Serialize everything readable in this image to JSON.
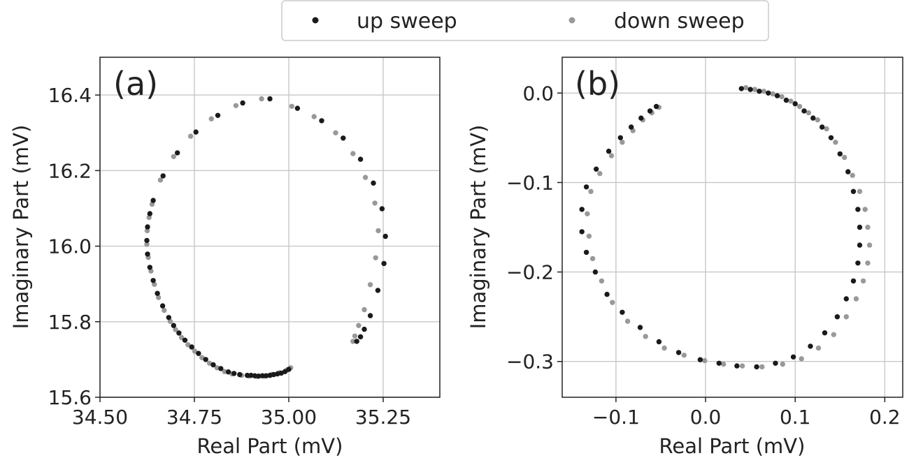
{
  "legend": {
    "items": [
      {
        "label": "up sweep",
        "color": "#1a1a1a"
      },
      {
        "label": "down sweep",
        "color": "#999999"
      }
    ],
    "placement": "top-center"
  },
  "chart_data": [
    {
      "type": "scatter",
      "panel_label": "(a)",
      "xlabel": "Real Part (mV)",
      "ylabel": "Imaginary Part (mV)",
      "xlim": [
        34.5,
        35.4
      ],
      "ylim": [
        15.6,
        16.5
      ],
      "xticks": [
        34.5,
        34.75,
        35.0,
        35.25
      ],
      "xtick_labels": [
        "34.50",
        "34.75",
        "35.00",
        "35.25"
      ],
      "yticks": [
        15.6,
        15.8,
        16.0,
        16.2,
        16.4
      ],
      "ytick_labels": [
        "15.6",
        "15.8",
        "16.0",
        "16.2",
        "16.4"
      ],
      "grid": true,
      "circle": {
        "center_x": 34.95,
        "center_y": 16.015,
        "radius": 0.36
      },
      "series": [
        {
          "name": "up sweep",
          "color": "#1a1a1a",
          "points": [
            [
              35.0,
              15.674
            ],
            [
              34.99,
              15.668
            ],
            [
              34.98,
              15.664
            ],
            [
              34.97,
              15.662
            ],
            [
              34.96,
              15.66
            ],
            [
              34.95,
              15.658
            ],
            [
              34.94,
              15.657
            ],
            [
              34.93,
              15.657
            ],
            [
              34.92,
              15.656
            ],
            [
              34.91,
              15.657
            ],
            [
              34.9,
              15.658
            ],
            [
              34.89,
              15.658
            ],
            [
              34.87,
              15.66
            ],
            [
              34.855,
              15.663
            ],
            [
              34.84,
              15.667
            ],
            [
              34.82,
              15.676
            ],
            [
              34.8,
              15.686
            ],
            [
              34.78,
              15.7
            ],
            [
              34.761,
              15.716
            ],
            [
              34.743,
              15.733
            ],
            [
              34.725,
              15.751
            ],
            [
              34.709,
              15.77
            ],
            [
              34.695,
              15.79
            ],
            [
              34.682,
              15.811
            ],
            [
              34.666,
              15.842
            ],
            [
              34.652,
              15.875
            ],
            [
              34.641,
              15.909
            ],
            [
              34.632,
              15.944
            ],
            [
              34.626,
              15.979
            ],
            [
              34.624,
              16.015
            ],
            [
              34.626,
              16.051
            ],
            [
              34.632,
              16.086
            ],
            [
              34.641,
              16.121
            ],
            [
              34.667,
              16.186
            ],
            [
              34.705,
              16.247
            ],
            [
              34.754,
              16.302
            ],
            [
              34.812,
              16.346
            ],
            [
              34.878,
              16.379
            ],
            [
              34.95,
              16.39
            ],
            [
              35.023,
              16.365
            ],
            [
              35.087,
              16.332
            ],
            [
              35.144,
              16.286
            ],
            [
              35.19,
              16.23
            ],
            [
              35.224,
              16.167
            ],
            [
              35.247,
              16.099
            ],
            [
              35.256,
              16.026
            ],
            [
              35.252,
              15.954
            ],
            [
              35.236,
              15.883
            ],
            [
              35.216,
              15.816
            ],
            [
              35.2,
              15.78
            ],
            [
              35.19,
              15.76
            ],
            [
              35.18,
              15.748
            ]
          ]
        },
        {
          "name": "down sweep",
          "color": "#999999",
          "points": [
            [
              35.005,
              15.678
            ],
            [
              34.995,
              15.672
            ],
            [
              34.975,
              15.665
            ],
            [
              34.955,
              15.66
            ],
            [
              34.935,
              15.656
            ],
            [
              34.915,
              15.655
            ],
            [
              34.895,
              15.656
            ],
            [
              34.875,
              15.658
            ],
            [
              34.85,
              15.662
            ],
            [
              34.83,
              15.668
            ],
            [
              34.81,
              15.678
            ],
            [
              34.79,
              15.69
            ],
            [
              34.77,
              15.705
            ],
            [
              34.751,
              15.722
            ],
            [
              34.733,
              15.739
            ],
            [
              34.716,
              15.758
            ],
            [
              34.7,
              15.779
            ],
            [
              34.686,
              15.801
            ],
            [
              34.67,
              15.83
            ],
            [
              34.655,
              15.864
            ],
            [
              34.644,
              15.899
            ],
            [
              34.635,
              15.934
            ],
            [
              34.628,
              15.97
            ],
            [
              34.624,
              16.005
            ],
            [
              34.625,
              16.041
            ],
            [
              34.63,
              16.076
            ],
            [
              34.638,
              16.111
            ],
            [
              34.66,
              16.175
            ],
            [
              34.695,
              16.237
            ],
            [
              34.74,
              16.291
            ],
            [
              34.795,
              16.337
            ],
            [
              34.86,
              16.372
            ],
            [
              34.928,
              16.39
            ],
            [
              35.008,
              16.37
            ],
            [
              35.067,
              16.343
            ],
            [
              35.124,
              16.3
            ],
            [
              35.17,
              16.245
            ],
            [
              35.203,
              16.182
            ],
            [
              35.228,
              16.114
            ],
            [
              35.237,
              16.041
            ],
            [
              35.23,
              15.969
            ],
            [
              35.216,
              15.898
            ],
            [
              35.2,
              15.832
            ],
            [
              35.185,
              15.79
            ],
            [
              35.175,
              15.762
            ],
            [
              35.17,
              15.748
            ]
          ]
        }
      ]
    },
    {
      "type": "scatter",
      "panel_label": "(b)",
      "xlabel": "Real Part (mV)",
      "ylabel": "Imaginary Part (mV)",
      "xlim": [
        -0.16,
        0.22
      ],
      "ylim": [
        -0.34,
        0.04
      ],
      "xticks": [
        -0.1,
        0.0,
        0.1,
        0.2
      ],
      "xtick_labels": [
        "−0.1",
        "0.0",
        "0.1",
        "0.2"
      ],
      "yticks": [
        -0.3,
        -0.2,
        -0.1,
        0.0
      ],
      "ytick_labels": [
        "−0.3",
        "−0.2",
        "−0.1",
        "0.0"
      ],
      "grid": true,
      "circle": {
        "center_x": 0.02,
        "center_y": -0.145,
        "radius": 0.16
      },
      "series": [
        {
          "name": "up sweep",
          "color": "#1a1a1a",
          "points": [
            [
              0.04,
              0.005
            ],
            [
              0.05,
              0.004
            ],
            [
              0.06,
              0.002
            ],
            [
              0.07,
              0.0
            ],
            [
              0.08,
              -0.003
            ],
            [
              0.09,
              -0.008
            ],
            [
              0.1,
              -0.012
            ],
            [
              0.11,
              -0.02
            ],
            [
              0.12,
              -0.028
            ],
            [
              0.13,
              -0.038
            ],
            [
              0.14,
              -0.05
            ],
            [
              0.15,
              -0.068
            ],
            [
              0.159,
              -0.088
            ],
            [
              0.165,
              -0.11
            ],
            [
              0.17,
              -0.13
            ],
            [
              0.172,
              -0.15
            ],
            [
              0.172,
              -0.17
            ],
            [
              0.17,
              -0.19
            ],
            [
              0.165,
              -0.21
            ],
            [
              0.157,
              -0.23
            ],
            [
              0.147,
              -0.25
            ],
            [
              0.133,
              -0.268
            ],
            [
              0.117,
              -0.283
            ],
            [
              0.098,
              -0.295
            ],
            [
              0.078,
              -0.302
            ],
            [
              0.057,
              -0.306
            ],
            [
              0.035,
              -0.305
            ],
            [
              0.015,
              -0.302
            ],
            [
              -0.006,
              -0.298
            ],
            [
              -0.03,
              -0.29
            ],
            [
              -0.052,
              -0.278
            ],
            [
              -0.073,
              -0.262
            ],
            [
              -0.093,
              -0.245
            ],
            [
              -0.11,
              -0.225
            ],
            [
              -0.123,
              -0.2
            ],
            [
              -0.133,
              -0.178
            ],
            [
              -0.138,
              -0.155
            ],
            [
              -0.138,
              -0.13
            ],
            [
              -0.133,
              -0.105
            ],
            [
              -0.122,
              -0.085
            ],
            [
              -0.108,
              -0.065
            ],
            [
              -0.095,
              -0.05
            ],
            [
              -0.083,
              -0.038
            ],
            [
              -0.072,
              -0.028
            ],
            [
              -0.062,
              -0.02
            ],
            [
              -0.055,
              -0.015
            ]
          ]
        },
        {
          "name": "down sweep",
          "color": "#999999",
          "points": [
            [
              0.045,
              0.006
            ],
            [
              0.055,
              0.004
            ],
            [
              0.065,
              0.002
            ],
            [
              0.075,
              -0.001
            ],
            [
              0.085,
              -0.004
            ],
            [
              0.095,
              -0.009
            ],
            [
              0.105,
              -0.015
            ],
            [
              0.115,
              -0.022
            ],
            [
              0.125,
              -0.03
            ],
            [
              0.135,
              -0.04
            ],
            [
              0.145,
              -0.055
            ],
            [
              0.155,
              -0.072
            ],
            [
              0.164,
              -0.092
            ],
            [
              0.172,
              -0.11
            ],
            [
              0.178,
              -0.13
            ],
            [
              0.181,
              -0.15
            ],
            [
              0.183,
              -0.17
            ],
            [
              0.181,
              -0.19
            ],
            [
              0.176,
              -0.21
            ],
            [
              0.168,
              -0.23
            ],
            [
              0.157,
              -0.25
            ],
            [
              0.143,
              -0.27
            ],
            [
              0.126,
              -0.285
            ],
            [
              0.107,
              -0.297
            ],
            [
              0.086,
              -0.303
            ],
            [
              0.063,
              -0.306
            ],
            [
              0.041,
              -0.305
            ],
            [
              0.02,
              -0.303
            ],
            [
              -0.001,
              -0.299
            ],
            [
              -0.024,
              -0.293
            ],
            [
              -0.046,
              -0.285
            ],
            [
              -0.067,
              -0.272
            ],
            [
              -0.087,
              -0.255
            ],
            [
              -0.104,
              -0.234
            ],
            [
              -0.116,
              -0.21
            ],
            [
              -0.126,
              -0.185
            ],
            [
              -0.13,
              -0.16
            ],
            [
              -0.132,
              -0.135
            ],
            [
              -0.128,
              -0.11
            ],
            [
              -0.118,
              -0.09
            ],
            [
              -0.105,
              -0.07
            ],
            [
              -0.093,
              -0.055
            ],
            [
              -0.081,
              -0.042
            ],
            [
              -0.07,
              -0.03
            ],
            [
              -0.06,
              -0.022
            ],
            [
              -0.052,
              -0.016
            ]
          ]
        }
      ]
    }
  ]
}
